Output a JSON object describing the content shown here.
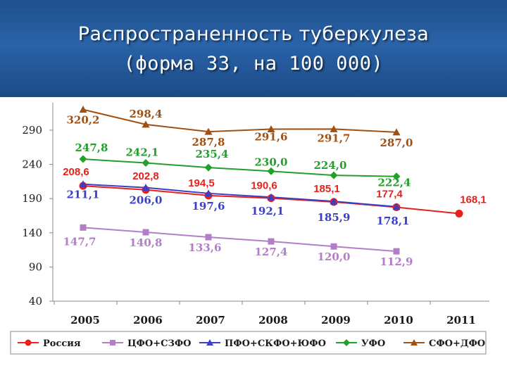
{
  "slide": {
    "title_line1": "Распространенность туберкулеза",
    "title_line2": "(форма 33, на 100 000)"
  },
  "chart_data": {
    "type": "line",
    "categories": [
      "2005",
      "2006",
      "2007",
      "2008",
      "2009",
      "2010",
      "2011"
    ],
    "ylim": [
      40,
      290
    ],
    "yticks": [
      "40",
      "90",
      "140",
      "190",
      "240",
      "290"
    ],
    "ytick_values": [
      40,
      90,
      140,
      190,
      240,
      290
    ],
    "legend_position": "bottom",
    "series": [
      {
        "name": "Россия",
        "color": "#e8201b",
        "marker": "circle",
        "values": [
          208.6,
          202.8,
          194.5,
          190.6,
          185.1,
          177.4,
          168.1
        ],
        "labels": [
          "208,6",
          "202,8",
          "194,5",
          "190,6",
          "185,1",
          "177,4",
          "168,1"
        ]
      },
      {
        "name": "ЦФО+СЗФО",
        "color": "#b27fc6",
        "marker": "square",
        "values": [
          147.7,
          140.8,
          133.6,
          127.4,
          120.0,
          112.9,
          null
        ],
        "labels": [
          "147,7",
          "140,8",
          "133,6",
          "127,4",
          "120,0",
          "112,9",
          ""
        ]
      },
      {
        "name": "ПФО+СКФО+ЮФО",
        "color": "#3a3fc8",
        "marker": "triangle",
        "values": [
          211.1,
          206.0,
          197.6,
          192.1,
          185.9,
          178.1,
          null
        ],
        "labels": [
          "211,1",
          "206,0",
          "197,6",
          "192,1",
          "185,9",
          "178,1",
          ""
        ]
      },
      {
        "name": "УФО",
        "color": "#22a12a",
        "marker": "diamond",
        "values": [
          247.8,
          242.1,
          235.4,
          230.0,
          224.0,
          222.4,
          null
        ],
        "labels": [
          "247,8",
          "242,1",
          "235,4",
          "230,0",
          "224,0",
          "222,4",
          ""
        ]
      },
      {
        "name": "СФО+ДФО",
        "color": "#a05012",
        "marker": "triangle",
        "values": [
          320.2,
          298.4,
          287.8,
          291.6,
          291.7,
          287.0,
          null
        ],
        "labels": [
          "320,2",
          "298,4",
          "287,8",
          "291,6",
          "291,7",
          "287,0",
          ""
        ]
      }
    ]
  }
}
